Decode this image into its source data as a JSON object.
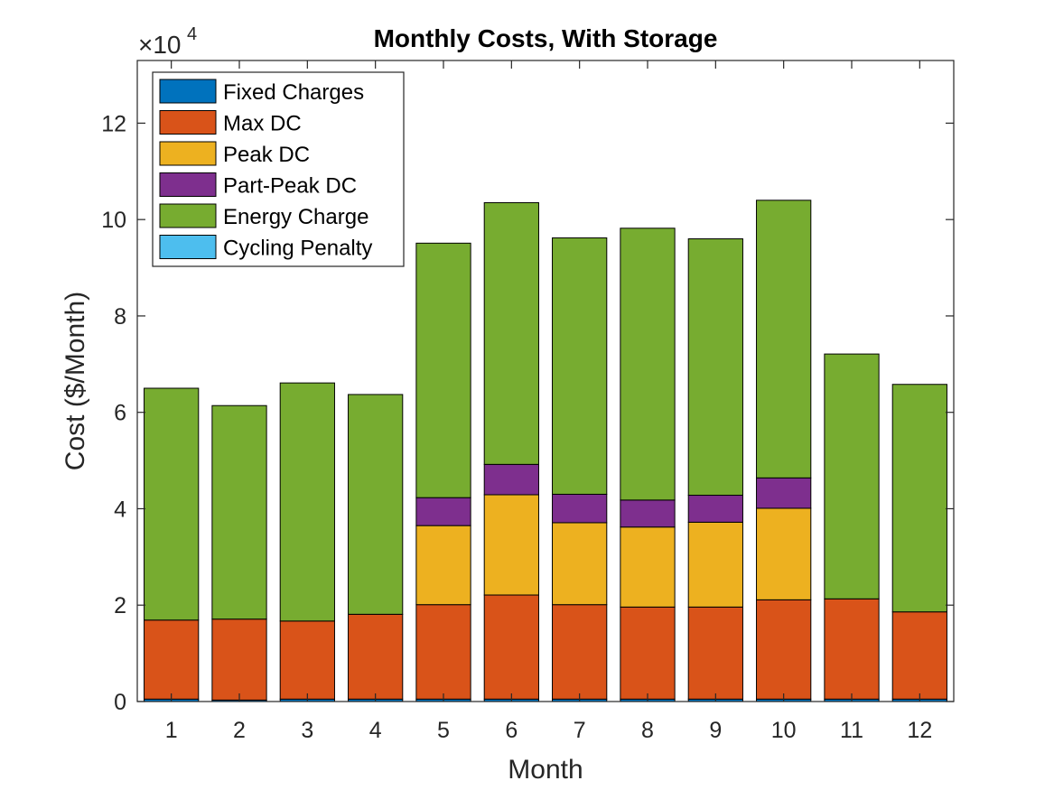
{
  "chart_data": {
    "type": "bar",
    "stacked": true,
    "title": "Monthly Costs, With Storage",
    "xlabel": "Month",
    "ylabel": "Cost ($/Month)",
    "exponent_label": "×10",
    "exponent_power": "4",
    "ylim": [
      0,
      133000
    ],
    "yticks": [
      0,
      20000,
      40000,
      60000,
      80000,
      100000,
      120000
    ],
    "ytick_labels": [
      "0",
      "2",
      "4",
      "6",
      "8",
      "10",
      "12"
    ],
    "categories": [
      "1",
      "2",
      "3",
      "4",
      "5",
      "6",
      "7",
      "8",
      "9",
      "10",
      "11",
      "12"
    ],
    "legend_position": "top-left",
    "grid": false,
    "series": [
      {
        "name": "Fixed Charges",
        "color": "#0072BD",
        "values": [
          500,
          300,
          500,
          500,
          500,
          500,
          500,
          500,
          500,
          500,
          500,
          500
        ]
      },
      {
        "name": "Max DC",
        "color": "#D95319",
        "values": [
          16400,
          16800,
          16200,
          17600,
          19600,
          21600,
          19600,
          19100,
          19100,
          20600,
          20800,
          18100
        ]
      },
      {
        "name": "Peak DC",
        "color": "#EDB120",
        "values": [
          0,
          0,
          0,
          0,
          16400,
          20800,
          17000,
          16600,
          17600,
          19000,
          0,
          0
        ]
      },
      {
        "name": "Part-Peak DC",
        "color": "#7E2F8E",
        "values": [
          0,
          0,
          0,
          0,
          5800,
          6300,
          5900,
          5600,
          5600,
          6300,
          0,
          0
        ]
      },
      {
        "name": "Energy Charge",
        "color": "#77AC30",
        "values": [
          48100,
          44300,
          49400,
          45600,
          52800,
          54300,
          53200,
          56400,
          53200,
          57600,
          50800,
          47200
        ]
      },
      {
        "name": "Cycling Penalty",
        "color": "#4DBEEE",
        "values": [
          0,
          0,
          0,
          0,
          0,
          0,
          0,
          0,
          0,
          0,
          0,
          0
        ]
      }
    ]
  }
}
